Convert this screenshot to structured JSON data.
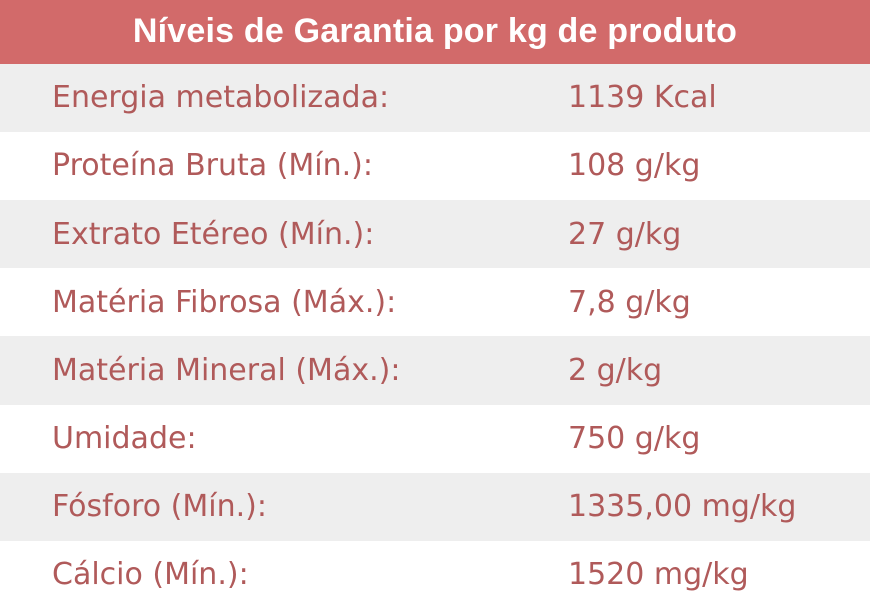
{
  "table": {
    "title": "Níveis de Garantia por kg de produto",
    "rows": [
      {
        "label": "Energia metabolizada:",
        "value": "1139 Kcal"
      },
      {
        "label": "Proteína Bruta (Mín.):",
        "value": "108 g/kg"
      },
      {
        "label": "Extrato Etéreo (Mín.):",
        "value": "27 g/kg"
      },
      {
        "label": "Matéria Fibrosa (Máx.):",
        "value": "7,8 g/kg"
      },
      {
        "label": "Matéria Mineral (Máx.):",
        "value": "2 g/kg"
      },
      {
        "label": "Umidade:",
        "value": "750 g/kg"
      },
      {
        "label": "Fósforo (Mín.):",
        "value": "1335,00 mg/kg"
      },
      {
        "label": "Cálcio (Mín.):",
        "value": "1520 mg/kg"
      }
    ]
  },
  "colors": {
    "header_bg": "#d26a6a",
    "header_text": "#ffffff",
    "row_text": "#b05a5a",
    "row_shaded_bg": "#eeeeee",
    "row_plain_bg": "#ffffff"
  }
}
